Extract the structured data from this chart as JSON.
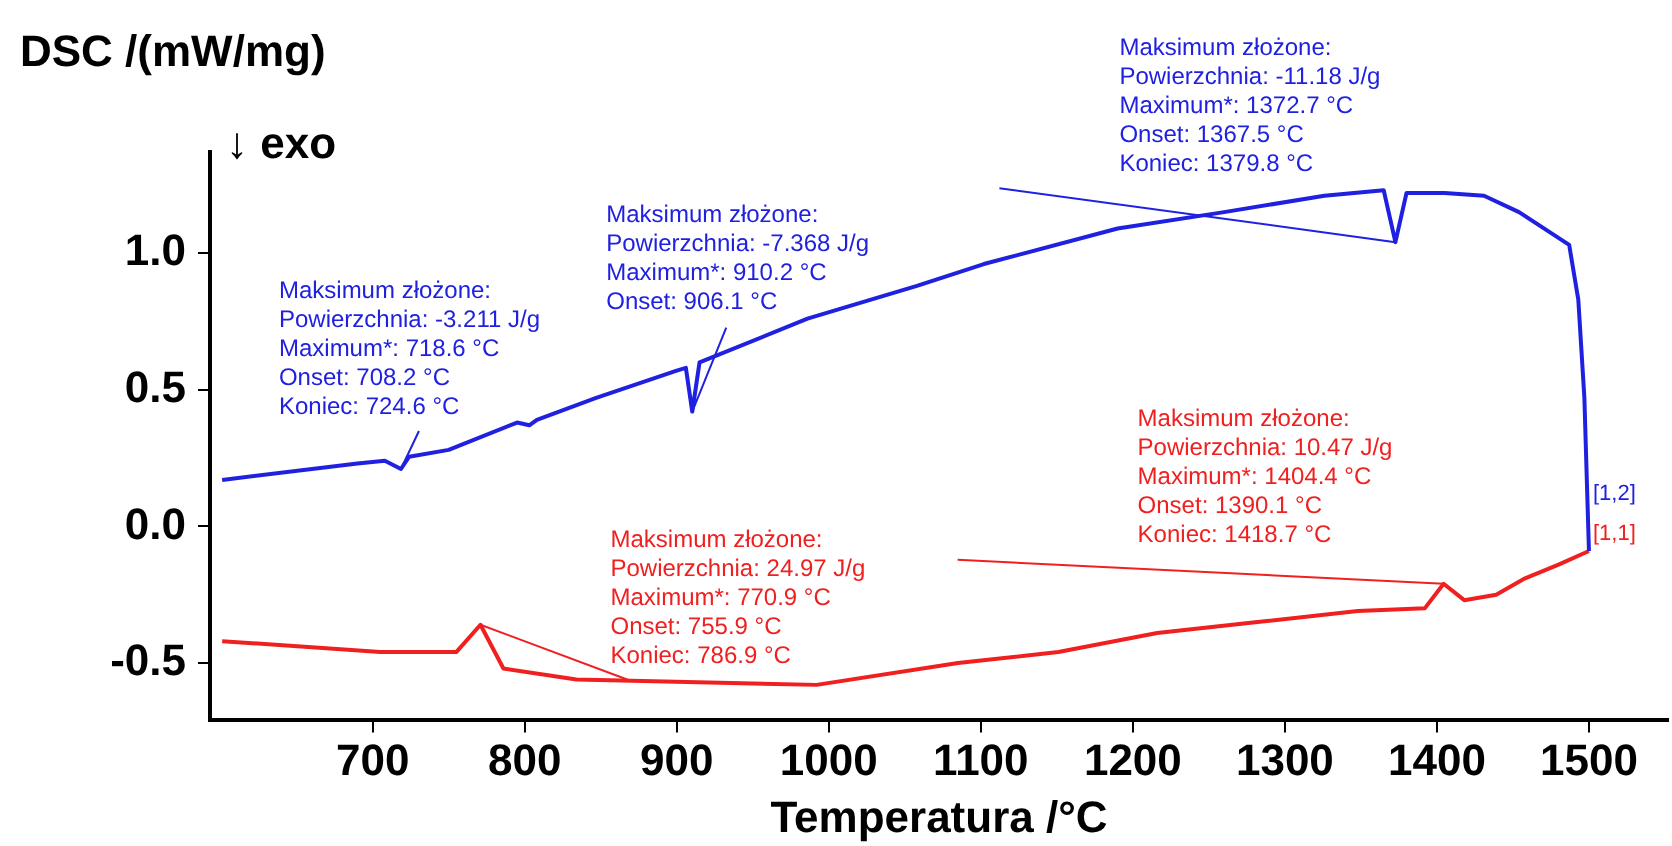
{
  "chart_data": {
    "type": "line",
    "xlabel": "Temperatura /°C",
    "ylabel": "DSC /(mW/mg)",
    "xlim": [
      593,
      1552
    ],
    "xticks": [
      700,
      800,
      900,
      1000,
      1100,
      1200,
      1300,
      1400,
      1500
    ],
    "ylim": [
      -0.71,
      1.37
    ],
    "yticks": [
      {
        "value": -0.5,
        "label": "-0.5"
      },
      {
        "value": 0,
        "label": "0.0"
      },
      {
        "value": 0.5,
        "label": "0.5"
      },
      {
        "value": 1,
        "label": "1.0"
      }
    ],
    "grid": false,
    "legend": false,
    "marker": "none",
    "line_style": "solid",
    "series": [
      {
        "name": "[1,2]",
        "color": "#2020e0",
        "x": [
          601,
          690,
          708,
          718.6,
          724,
          750,
          795,
          803,
          808,
          847,
          900,
          906,
          910.2,
          915,
          986,
          1058,
          1102,
          1190,
          1260,
          1326,
          1365,
          1372.7,
          1380,
          1405,
          1431,
          1454,
          1487,
          1493,
          1497,
          1500
        ],
        "values": [
          0.17,
          0.23,
          0.24,
          0.21,
          0.255,
          0.28,
          0.38,
          0.37,
          0.39,
          0.47,
          0.57,
          0.58,
          0.42,
          0.6,
          0.76,
          0.88,
          0.96,
          1.09,
          1.15,
          1.21,
          1.23,
          1.04,
          1.22,
          1.22,
          1.21,
          1.15,
          1.03,
          0.83,
          0.47,
          -0.09
        ]
      },
      {
        "name": "[1,1]",
        "color": "#f02020",
        "x": [
          601,
          705,
          755,
          770.9,
          786,
          834,
          992,
          1085,
          1151,
          1216,
          1282,
          1348,
          1392,
          1404.4,
          1418,
          1439,
          1458,
          1480,
          1500
        ],
        "values": [
          -0.42,
          -0.46,
          -0.46,
          -0.36,
          -0.52,
          -0.56,
          -0.58,
          -0.5,
          -0.46,
          -0.39,
          -0.35,
          -0.31,
          -0.3,
          -0.21,
          -0.27,
          -0.25,
          -0.19,
          -0.14,
          -0.09
        ]
      }
    ],
    "annotations": [
      "↓ exo",
      {
        "text": "Maksimum złożone:\nPowierzchnia: -3.211 J/g\nMaximum*: 718.6 °C\nOnset: 708.2 °C\nKoniec: 724.6 °C",
        "x": 718.6,
        "y": 0.21
      },
      {
        "text": "Maksimum złożone:\nPowierzchnia: -7.368 J/g\nMaximum*: 910.2 °C\nOnset: 906.1 °C",
        "x": 910.2,
        "y": 0.42
      },
      {
        "text": "Maksimum złożone:\nPowierzchnia: -11.18 J/g\nMaximum*: 1372.7 °C\nOnset: 1367.5 °C\nKoniec: 1379.8 °C",
        "x": 1372.7,
        "y": 1.04
      },
      {
        "text": "Maksimum złożone:\nPowierzchnia: 24.97 J/g\nMaximum*: 770.9 °C\nOnset: 755.9 °C\nKoniec: 786.9 °C",
        "x": 770.9,
        "y": -0.36
      },
      {
        "text": "Maksimum złożone:\nPowierzchnia: 10.47 J/g\nMaximum*: 1404.4 °C\nOnset: 1390.1 °C\nKoniec: 1418.7 °C",
        "x": 1404.4,
        "y": -0.21
      }
    ]
  }
}
